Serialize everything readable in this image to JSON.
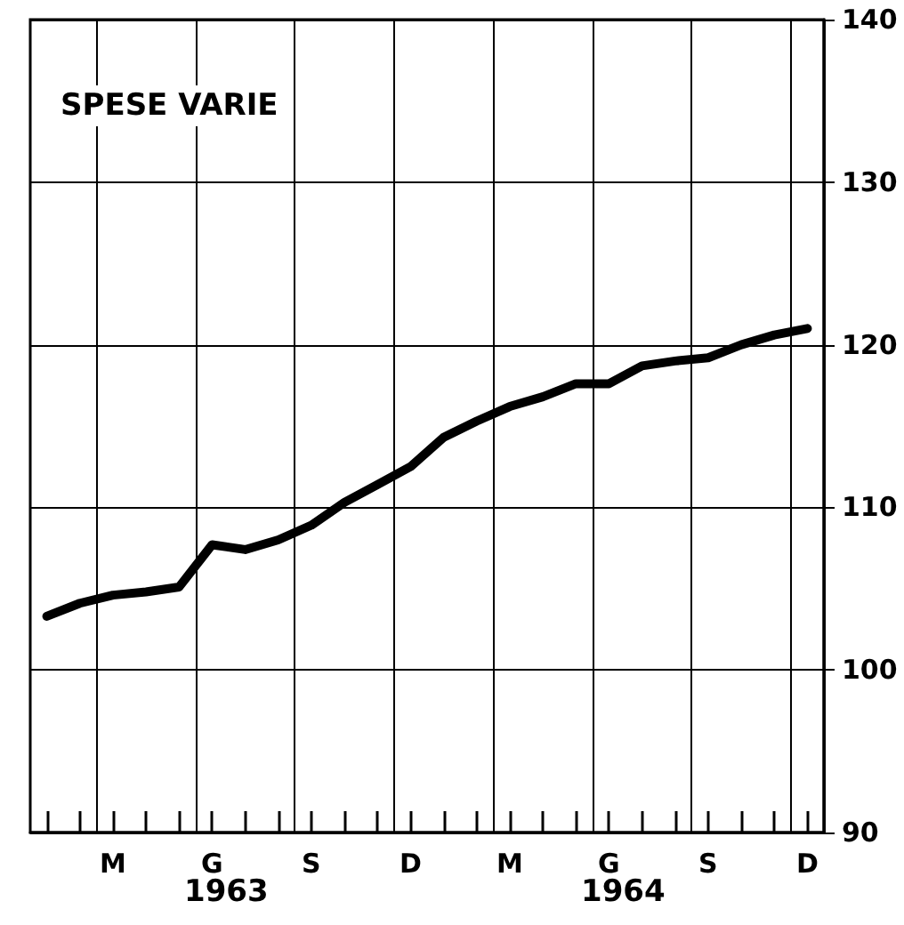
{
  "chart_data": {
    "type": "line",
    "title": "SPESE VARIE",
    "categories": [
      null,
      null,
      "M",
      null,
      null,
      "G",
      null,
      null,
      "S",
      null,
      null,
      "D",
      null,
      null,
      "M",
      null,
      null,
      "G",
      null,
      null,
      "S",
      null,
      null,
      "D"
    ],
    "series": [
      {
        "color": "#000000",
        "values": [
          103.3,
          104.1,
          104.6,
          104.8,
          105.1,
          107.7,
          107.4,
          108.0,
          108.9,
          110.3,
          111.4,
          112.5,
          114.3,
          115.3,
          116.2,
          116.8,
          117.6,
          117.6,
          118.7,
          119.0,
          119.2,
          120.0,
          120.6,
          121.0
        ]
      }
    ],
    "ylim": [
      90,
      140
    ],
    "yticks": [
      90,
      100,
      110,
      120,
      130,
      140
    ],
    "annotations": [
      "1963",
      "1964"
    ],
    "grid": true,
    "marker": "none",
    "line_style": "solid"
  }
}
